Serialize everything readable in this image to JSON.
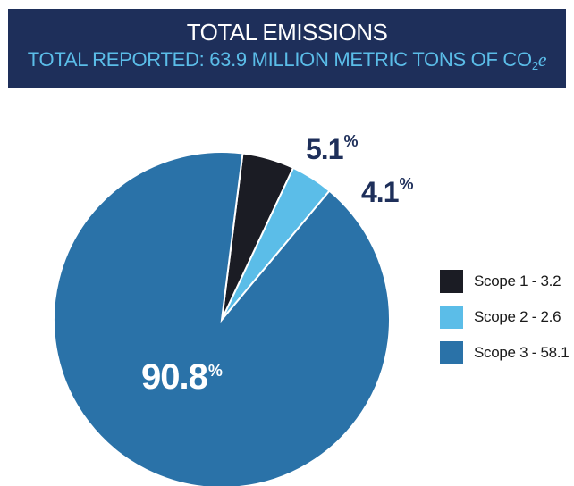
{
  "header": {
    "title": "TOTAL EMISSIONS",
    "subtitle_prefix": "TOTAL REPORTED: 63.9 MILLION METRIC TONS OF CO",
    "subtitle_subscript": "2",
    "subtitle_suffix": "e"
  },
  "chart_data": {
    "type": "pie",
    "title": "TOTAL EMISSIONS",
    "subtitle": "TOTAL REPORTED: 63.9 MILLION METRIC TONS OF CO2e",
    "slices": [
      {
        "label": "Scope 1 - 3.2",
        "value": 3.2,
        "percent": "5.1",
        "color": "#1b1c24"
      },
      {
        "label": "Scope 2 - 2.6",
        "value": 2.6,
        "percent": "4.1",
        "color": "#5bbde8"
      },
      {
        "label": "Scope 3 - 58.1",
        "value": 58.1,
        "percent": "90.8",
        "color": "#2a72a8"
      }
    ],
    "percent_sign": "%",
    "legend_position": "right"
  }
}
